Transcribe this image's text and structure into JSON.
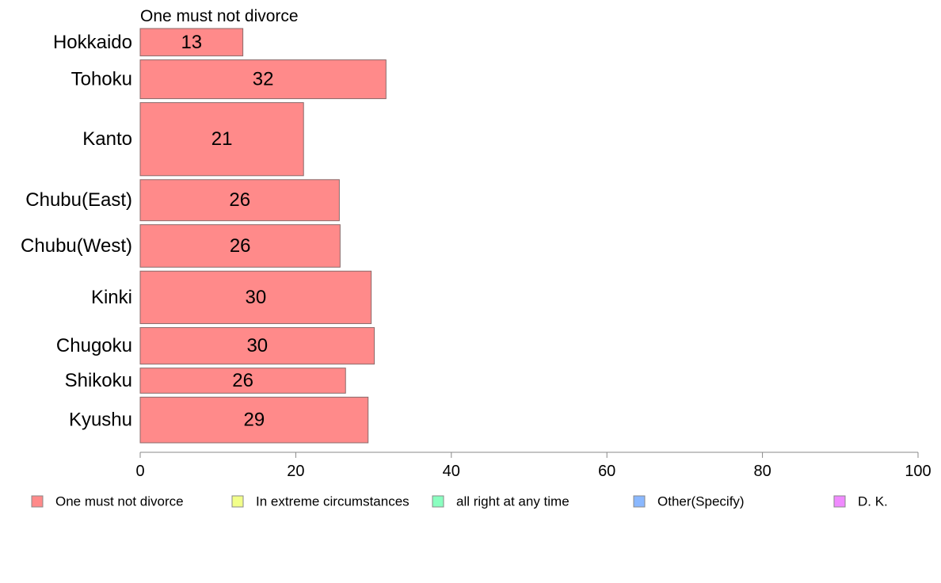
{
  "chart_data": {
    "type": "bar",
    "orientation": "horizontal",
    "title": "One must not divorce",
    "xlabel": "",
    "ylabel": "",
    "xlim": [
      0,
      100
    ],
    "x_ticks": [
      0,
      20,
      40,
      60,
      80,
      100
    ],
    "categories": [
      "Hokkaido",
      "Tohoku",
      "Kanto",
      "Chubu(East)",
      "Chubu(West)",
      "Kinki",
      "Chugoku",
      "Shikoku",
      "Kyushu"
    ],
    "category_weights": [
      0.6,
      0.85,
      1.6,
      0.9,
      0.93,
      1.15,
      0.8,
      0.55,
      1.0
    ],
    "series": [
      {
        "name": "One must not divorce",
        "values": [
          13.2,
          31.6,
          21.0,
          25.6,
          25.7,
          29.7,
          30.1,
          26.4,
          29.3
        ],
        "labels": [
          "13",
          "32",
          "21",
          "26",
          "26",
          "30",
          "30",
          "26",
          "29"
        ]
      }
    ],
    "legend": {
      "placement": "bottom",
      "entries": [
        {
          "label": "One must not divorce",
          "color": "#ff8a8a"
        },
        {
          "label": "In extreme circumstances",
          "color": "#f2ff8a"
        },
        {
          "label": "all right at any time",
          "color": "#8affc0"
        },
        {
          "label": "Other(Specify)",
          "color": "#8ab8ff"
        },
        {
          "label": "D. K.",
          "color": "#f08aff"
        }
      ]
    },
    "colors": {
      "bar_fill": "#ff8a8a",
      "bar_stroke": "#8a6a6a",
      "axis": "#888888"
    },
    "grid": false
  }
}
